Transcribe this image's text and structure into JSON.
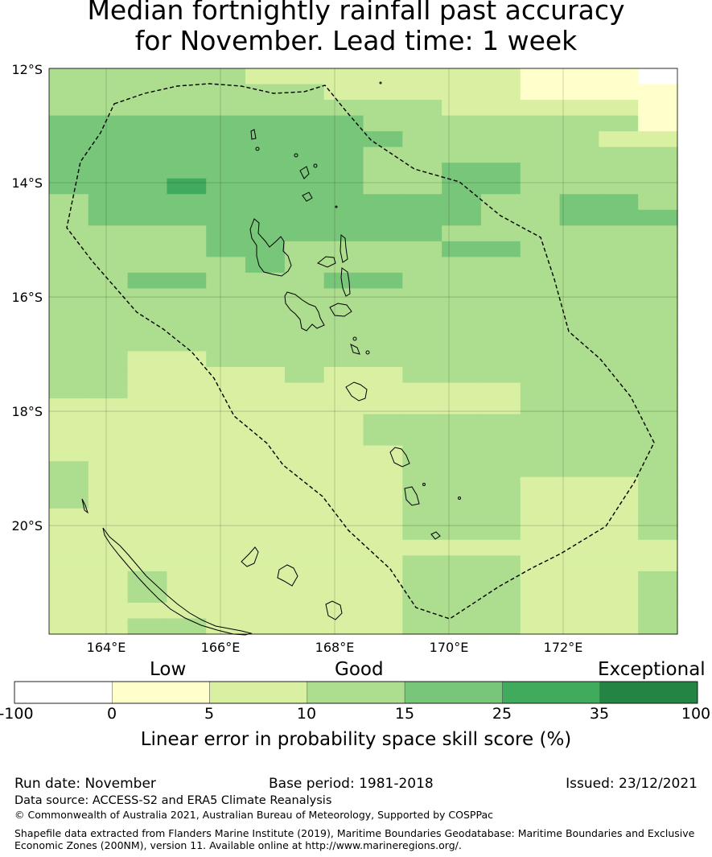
{
  "title": {
    "line1": "Median fortnightly rainfall past accuracy",
    "line2": "for November. Lead time: 1 week"
  },
  "map": {
    "lat_labels": [
      "12°S",
      "14°S",
      "16°S",
      "18°S",
      "20°S"
    ],
    "lon_labels": [
      "164°E",
      "166°E",
      "168°E",
      "170°E",
      "172°E"
    ],
    "lon_range": [
      163,
      174
    ],
    "lat_range": [
      -21.9,
      -12
    ],
    "grid": true,
    "boundary": "dashed black line (EEZ)",
    "skill_grid": [
      [
        3,
        3,
        3,
        3,
        3,
        2,
        2,
        2,
        2,
        2,
        2,
        2,
        1,
        1,
        1,
        0
      ],
      [
        3,
        3,
        3,
        3,
        3,
        3,
        3,
        2,
        2,
        2,
        2,
        2,
        1,
        1,
        1,
        1
      ],
      [
        3,
        3,
        3,
        3,
        3,
        3,
        3,
        3,
        3,
        3,
        2,
        2,
        2,
        2,
        2,
        1
      ],
      [
        4,
        4,
        4,
        4,
        4,
        4,
        4,
        4,
        3,
        3,
        3,
        3,
        3,
        3,
        3,
        1
      ],
      [
        4,
        4,
        4,
        4,
        4,
        4,
        4,
        4,
        4,
        3,
        3,
        3,
        3,
        3,
        2,
        2
      ],
      [
        4,
        4,
        4,
        4,
        4,
        4,
        4,
        4,
        3,
        3,
        3,
        3,
        3,
        3,
        3,
        3
      ],
      [
        4,
        4,
        4,
        4,
        4,
        4,
        4,
        4,
        3,
        3,
        4,
        4,
        3,
        3,
        3,
        3
      ],
      [
        4,
        4,
        4,
        5,
        4,
        4,
        4,
        4,
        3,
        3,
        4,
        4,
        3,
        3,
        3,
        3
      ],
      [
        3,
        4,
        4,
        4,
        4,
        4,
        4,
        4,
        4,
        4,
        4,
        3,
        3,
        4,
        4,
        3
      ],
      [
        3,
        4,
        4,
        4,
        4,
        4,
        4,
        4,
        4,
        4,
        4,
        3,
        3,
        4,
        4,
        4
      ],
      [
        3,
        3,
        3,
        3,
        4,
        4,
        4,
        4,
        4,
        4,
        3,
        3,
        3,
        3,
        3,
        3
      ],
      [
        3,
        3,
        3,
        3,
        4,
        4,
        3,
        3,
        3,
        3,
        4,
        4,
        3,
        3,
        3,
        3
      ],
      [
        3,
        3,
        3,
        3,
        3,
        4,
        3,
        3,
        3,
        3,
        3,
        3,
        3,
        3,
        3,
        3
      ],
      [
        3,
        3,
        4,
        4,
        3,
        3,
        3,
        4,
        4,
        3,
        3,
        3,
        3,
        3,
        3,
        3
      ],
      [
        3,
        3,
        3,
        3,
        3,
        3,
        3,
        3,
        3,
        3,
        3,
        3,
        3,
        3,
        3,
        3
      ],
      [
        3,
        3,
        3,
        3,
        3,
        3,
        3,
        3,
        3,
        3,
        3,
        3,
        3,
        3,
        3,
        3
      ],
      [
        3,
        3,
        3,
        3,
        3,
        3,
        3,
        3,
        3,
        3,
        3,
        3,
        3,
        3,
        3,
        3
      ],
      [
        3,
        3,
        3,
        3,
        3,
        3,
        3,
        3,
        3,
        3,
        3,
        3,
        3,
        3,
        3,
        3
      ],
      [
        3,
        3,
        2,
        2,
        3,
        3,
        3,
        3,
        3,
        3,
        3,
        3,
        3,
        3,
        3,
        3
      ],
      [
        3,
        3,
        2,
        2,
        2,
        2,
        3,
        2,
        2,
        3,
        3,
        3,
        3,
        3,
        3,
        3
      ],
      [
        3,
        3,
        2,
        2,
        2,
        2,
        2,
        2,
        2,
        2,
        2,
        2,
        3,
        3,
        3,
        3
      ],
      [
        2,
        2,
        2,
        2,
        2,
        2,
        2,
        2,
        2,
        2,
        2,
        2,
        3,
        3,
        3,
        3
      ],
      [
        2,
        2,
        2,
        2,
        2,
        2,
        2,
        2,
        3,
        3,
        3,
        3,
        3,
        3,
        3,
        3
      ],
      [
        2,
        2,
        2,
        2,
        2,
        2,
        2,
        2,
        3,
        3,
        3,
        3,
        3,
        3,
        3,
        3
      ],
      [
        2,
        2,
        2,
        2,
        2,
        2,
        2,
        2,
        2,
        3,
        3,
        3,
        3,
        3,
        3,
        3
      ],
      [
        3,
        2,
        2,
        2,
        2,
        2,
        2,
        2,
        2,
        3,
        3,
        3,
        3,
        3,
        3,
        3
      ],
      [
        3,
        2,
        2,
        2,
        2,
        2,
        2,
        2,
        2,
        3,
        3,
        3,
        2,
        2,
        2,
        3
      ],
      [
        3,
        2,
        2,
        2,
        2,
        2,
        2,
        2,
        2,
        3,
        3,
        3,
        2,
        2,
        2,
        3
      ],
      [
        2,
        2,
        2,
        2,
        2,
        2,
        2,
        2,
        2,
        3,
        3,
        3,
        2,
        2,
        2,
        3
      ],
      [
        2,
        2,
        2,
        2,
        2,
        2,
        2,
        2,
        2,
        3,
        3,
        3,
        2,
        2,
        2,
        3
      ],
      [
        2,
        2,
        2,
        2,
        2,
        2,
        2,
        2,
        2,
        2,
        2,
        2,
        2,
        2,
        2,
        2
      ],
      [
        2,
        2,
        2,
        2,
        2,
        2,
        2,
        2,
        2,
        3,
        3,
        3,
        2,
        2,
        2,
        2
      ],
      [
        2,
        2,
        3,
        2,
        2,
        2,
        2,
        2,
        2,
        3,
        3,
        3,
        2,
        2,
        2,
        3
      ],
      [
        2,
        2,
        3,
        2,
        2,
        2,
        2,
        2,
        2,
        3,
        3,
        3,
        2,
        2,
        2,
        3
      ],
      [
        2,
        2,
        2,
        2,
        2,
        2,
        2,
        2,
        2,
        3,
        3,
        3,
        2,
        2,
        2,
        3
      ],
      [
        2,
        2,
        3,
        3,
        2,
        2,
        2,
        2,
        2,
        3,
        3,
        3,
        2,
        2,
        2,
        3
      ]
    ]
  },
  "colorbar": {
    "category_labels": [
      "Low",
      "Good",
      "Exceptional"
    ],
    "ticks": [
      "-100",
      "0",
      "5",
      "10",
      "15",
      "25",
      "35",
      "100"
    ],
    "bins": [
      {
        "from": -100,
        "to": 0,
        "color": "#ffffff"
      },
      {
        "from": 0,
        "to": 5,
        "color": "#ffffcc"
      },
      {
        "from": 5,
        "to": 10,
        "color": "#d9f0a3"
      },
      {
        "from": 10,
        "to": 15,
        "color": "#addd8e"
      },
      {
        "from": 15,
        "to": 25,
        "color": "#78c679"
      },
      {
        "from": 25,
        "to": 35,
        "color": "#41ab5d"
      },
      {
        "from": 35,
        "to": 100,
        "color": "#238443"
      }
    ],
    "label": "Linear error in probability space skill score (%)"
  },
  "footer": {
    "run_date": "Run date: November",
    "base_period": "Base period: 1981-2018",
    "issued": "Issued: 23/12/2021",
    "data_source": "Data source: ACCESS-S2 and ERA5 Climate Reanalysis",
    "copyright": "© Commonwealth of Australia 2021, Australian Bureau of Meteorology, Supported by COSPPac",
    "shapefile_line1": "Shapefile data extracted from Flanders Marine Institute (2019), Maritime Boundaries Geodatabase: Maritime Boundaries and Exclusive",
    "shapefile_line2": "Economic Zones (200NM), version 11. Available online at http://www.marineregions.org/."
  }
}
